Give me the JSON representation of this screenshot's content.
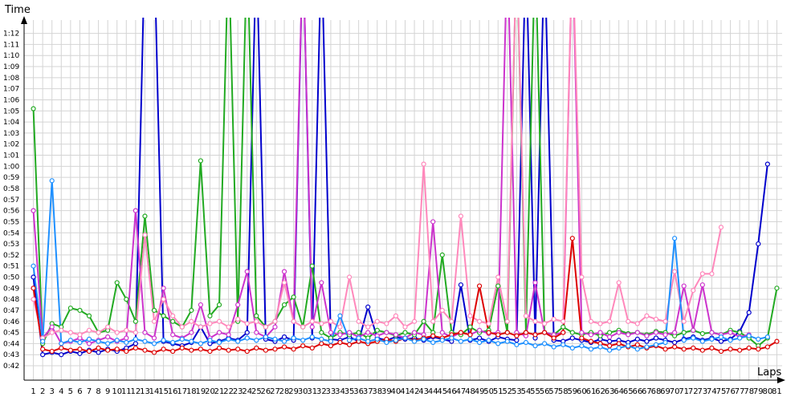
{
  "chart_data": {
    "type": "line",
    "x_label": "Laps",
    "y_label": "Time",
    "grid": true,
    "x": [
      1,
      2,
      3,
      4,
      5,
      6,
      7,
      8,
      9,
      10,
      11,
      12,
      13,
      14,
      15,
      16,
      17,
      18,
      19,
      20,
      21,
      22,
      23,
      24,
      25,
      26,
      27,
      28,
      29,
      30,
      31,
      32,
      33,
      34,
      35,
      36,
      37,
      38,
      39,
      40,
      41,
      42,
      43,
      44,
      45,
      46,
      47,
      48,
      49,
      50,
      51,
      52,
      53,
      54,
      55,
      56,
      57,
      58,
      59,
      60,
      61,
      62,
      63,
      64,
      65,
      66,
      67,
      68,
      69,
      70,
      71,
      72,
      73,
      74,
      75,
      76,
      77,
      78,
      79,
      80,
      81
    ],
    "xlim": [
      0,
      82
    ],
    "xticks": [
      1,
      2,
      3,
      4,
      5,
      6,
      7,
      8,
      9,
      10,
      11,
      12,
      13,
      14,
      15,
      16,
      17,
      18,
      19,
      20,
      21,
      22,
      23,
      24,
      25,
      26,
      27,
      28,
      29,
      30,
      31,
      32,
      33,
      34,
      35,
      36,
      37,
      38,
      39,
      40,
      41,
      42,
      43,
      44,
      45,
      46,
      47,
      48,
      49,
      50,
      51,
      52,
      53,
      54,
      55,
      56,
      57,
      58,
      59,
      60,
      61,
      62,
      63,
      64,
      65,
      66,
      67,
      68,
      69,
      70,
      71,
      72,
      73,
      74,
      75,
      76,
      77,
      78,
      79,
      80,
      81
    ],
    "ylim": [
      40.7,
      73.2
    ],
    "yticks": [
      {
        "value": 42,
        "label": "0:42"
      },
      {
        "value": 43,
        "label": "0:43"
      },
      {
        "value": 44,
        "label": "0:44"
      },
      {
        "value": 45,
        "label": "0:45"
      },
      {
        "value": 46,
        "label": "0:46"
      },
      {
        "value": 47,
        "label": "0:47"
      },
      {
        "value": 48,
        "label": "0:48"
      },
      {
        "value": 49,
        "label": "0:49"
      },
      {
        "value": 50,
        "label": "0:50"
      },
      {
        "value": 51,
        "label": "0:51"
      },
      {
        "value": 52,
        "label": "0:52"
      },
      {
        "value": 53,
        "label": "0:53"
      },
      {
        "value": 54,
        "label": "0:54"
      },
      {
        "value": 55,
        "label": "0:55"
      },
      {
        "value": 56,
        "label": "0:56"
      },
      {
        "value": 57,
        "label": "0:57"
      },
      {
        "value": 58,
        "label": "0:58"
      },
      {
        "value": 59,
        "label": "0:59"
      },
      {
        "value": 60,
        "label": "1:00"
      },
      {
        "value": 61,
        "label": "1:01"
      },
      {
        "value": 62,
        "label": "1:02"
      },
      {
        "value": 63,
        "label": "1:03"
      },
      {
        "value": 64,
        "label": "1:04"
      },
      {
        "value": 65,
        "label": "1:05"
      },
      {
        "value": 66,
        "label": "1:06"
      },
      {
        "value": 67,
        "label": "1:07"
      },
      {
        "value": 68,
        "label": "1:08"
      },
      {
        "value": 69,
        "label": "1:09"
      },
      {
        "value": 70,
        "label": "1:10"
      },
      {
        "value": 71,
        "label": "1:11"
      },
      {
        "value": 72,
        "label": "1:12"
      }
    ],
    "series": [
      {
        "color": "#0000cc",
        "values": [
          50,
          43,
          43.2,
          43,
          43.3,
          43.1,
          43.4,
          43.2,
          43.5,
          43.3,
          43.6,
          44,
          80,
          80,
          44.2,
          44,
          43.8,
          44.1,
          45.5,
          44,
          44.2,
          44.5,
          44.3,
          45,
          80,
          44.4,
          44.2,
          44.6,
          44.3,
          80,
          44.5,
          80,
          44.4,
          44.3,
          44.6,
          44.2,
          47.3,
          44.5,
          44.3,
          44.6,
          44.4,
          44.5,
          44.3,
          44.6,
          44.4,
          44.2,
          49.3,
          44.3,
          44.5,
          44.2,
          44.6,
          44.4,
          44.3,
          80,
          44.5,
          80,
          44.3,
          44.2,
          44.5,
          44.3,
          44.1,
          44.4,
          44.2,
          44.3,
          44.1,
          44.4,
          44.2,
          44.5,
          44.3,
          44.1,
          44.4,
          44.6,
          44.3,
          44.5,
          44.2,
          44.4,
          45.1,
          46.8,
          53,
          60.2,
          null
        ]
      },
      {
        "color": "#22aa22",
        "values": [
          65.2,
          44,
          45.8,
          45.5,
          47.2,
          47,
          46.5,
          45,
          45.2,
          49.5,
          48,
          46,
          55.5,
          47,
          46.5,
          46,
          45.5,
          47,
          60.5,
          46.5,
          47.5,
          80,
          46,
          80,
          46.5,
          45.5,
          46,
          47.5,
          48.2,
          45.5,
          51,
          45,
          44.5,
          45,
          44.8,
          45,
          44.5,
          45.2,
          45,
          44.7,
          45,
          44.8,
          46,
          45,
          52,
          45,
          44.8,
          45.5,
          45,
          45.2,
          49.2,
          45,
          80,
          45,
          80,
          45,
          44.8,
          45.5,
          45,
          44.8,
          45,
          44.7,
          45,
          45.2,
          44.9,
          45,
          44.8,
          45.1,
          45,
          44.7,
          45,
          45.2,
          44.9,
          45,
          44.8,
          45.2,
          45,
          44.5,
          43.8,
          44.5,
          49
        ]
      },
      {
        "color": "#cc33cc",
        "values": [
          56,
          44.5,
          45.5,
          44,
          44.2,
          44.5,
          44,
          44.3,
          44.6,
          44.2,
          44.5,
          56,
          45,
          44.5,
          49,
          44.8,
          44.5,
          45,
          47.5,
          44.5,
          45,
          44.8,
          47.5,
          50.5,
          45,
          44.6,
          45.5,
          50.5,
          46,
          80,
          45.5,
          49.5,
          45,
          44.8,
          45,
          44.6,
          45,
          44.7,
          45,
          44.8,
          44.5,
          45,
          44.8,
          55,
          45,
          44.6,
          45,
          44.8,
          45.2,
          44.9,
          45,
          80,
          45,
          44.7,
          49.5,
          45,
          44.8,
          45,
          80,
          45,
          44.8,
          45,
          44.6,
          45,
          44.8,
          45,
          44.7,
          45,
          44.8,
          45,
          49.2,
          45.2,
          49.3,
          45,
          44.8,
          45,
          44.6,
          44.8,
          null,
          null,
          null
        ]
      },
      {
        "color": "#ff88bb",
        "values": [
          48,
          44.5,
          45,
          45.2,
          45,
          44.8,
          45.2,
          45,
          45.5,
          45,
          45.2,
          45,
          53.8,
          46,
          48,
          46.5,
          45.5,
          46,
          45.5,
          45.8,
          46,
          45.5,
          46.2,
          45.8,
          46,
          45.5,
          46,
          49.5,
          46,
          45.5,
          46,
          45.8,
          46,
          45.5,
          50,
          46,
          45.5,
          46,
          45.8,
          46.5,
          45.5,
          46,
          60.2,
          46,
          47,
          46,
          55.5,
          46.5,
          46,
          45.8,
          50,
          46,
          80,
          46.5,
          46,
          45.8,
          46.2,
          46,
          80,
          50,
          46,
          45.8,
          46,
          49.5,
          46,
          45.8,
          46.5,
          46.2,
          46,
          50.5,
          46,
          48.8,
          50.3,
          50.3,
          54.5,
          null,
          null,
          null,
          null,
          null,
          null
        ]
      },
      {
        "color": "#dd0000",
        "values": [
          49,
          43.5,
          43.3,
          43.6,
          43.4,
          43.5,
          43.3,
          43.6,
          43.4,
          43.5,
          43.3,
          43.6,
          43.4,
          43.2,
          43.5,
          43.3,
          43.6,
          43.4,
          43.5,
          43.3,
          43.6,
          43.4,
          43.5,
          43.3,
          43.6,
          43.4,
          43.5,
          43.7,
          43.5,
          43.8,
          43.6,
          44,
          43.8,
          44.1,
          43.9,
          44.2,
          44,
          44.2,
          44.4,
          44.2,
          44.5,
          44.3,
          44.5,
          44.7,
          44.5,
          44.8,
          45,
          44.8,
          49.2,
          45,
          44.8,
          45,
          44.7,
          45,
          44.8,
          45,
          44.5,
          45,
          53.5,
          44.5,
          44.2,
          44,
          43.8,
          44,
          43.7,
          43.9,
          43.6,
          43.8,
          43.5,
          43.7,
          43.5,
          43.6,
          43.4,
          43.6,
          43.3,
          43.5,
          43.4,
          43.6,
          43.5,
          43.7,
          44.2
        ]
      },
      {
        "color": "#1e90ff",
        "values": [
          51,
          44.2,
          58.7,
          44,
          44.3,
          44.1,
          44.4,
          44.2,
          44,
          44.3,
          44.1,
          44.4,
          44.2,
          44,
          44.3,
          44.1,
          44.4,
          44.2,
          44,
          44.3,
          44.1,
          44.4,
          44.2,
          44.5,
          44.3,
          44.6,
          44.4,
          44.2,
          44.5,
          44.3,
          44.6,
          44.4,
          44.2,
          46.5,
          44.3,
          44.5,
          44.2,
          44.4,
          44.1,
          44.3,
          44.5,
          44.2,
          44.4,
          44.1,
          44.3,
          44.5,
          44.2,
          44.4,
          44.1,
          44.3,
          44,
          44.2,
          43.9,
          44.1,
          43.8,
          44,
          43.7,
          43.9,
          43.6,
          43.8,
          43.5,
          43.7,
          43.4,
          43.6,
          43.8,
          43.5,
          43.7,
          43.9,
          44.1,
          53.5,
          44.3,
          44.5,
          44.2,
          44.4,
          44.6,
          44.3,
          44.5,
          44.7,
          44.4,
          44.6,
          null
        ]
      }
    ]
  }
}
